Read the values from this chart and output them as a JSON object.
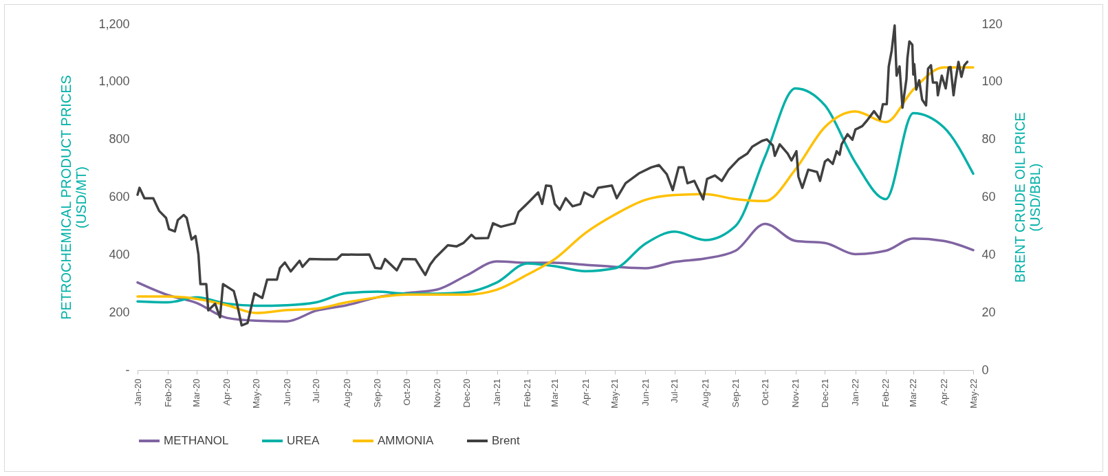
{
  "chart_data": {
    "type": "line",
    "ylabel": "PETROCHEMICAL PRODUCT PRICES\n(USD/MT)",
    "y2label": "BRENT CRUDE OIL PRICE\n(USD/BBL)",
    "legend": "bottom",
    "x": [
      "2020-01",
      "2020-02",
      "2020-03",
      "2020-04",
      "2020-05",
      "2020-06",
      "2020-07",
      "2020-08",
      "2020-09",
      "2020-10",
      "2020-11",
      "2020-12",
      "2021-01",
      "2021-02",
      "2021-03",
      "2021-04",
      "2021-05",
      "2021-06",
      "2021-07",
      "2021-08",
      "2021-09",
      "2021-10",
      "2021-11",
      "2021-12",
      "2022-01",
      "2022-02",
      "2022-03",
      "2022-04",
      "2022-05"
    ],
    "xlim": [
      "2020-01-01",
      "2022-05-01"
    ],
    "xticks": [
      {
        "value": "2020-01",
        "label": "Jan-20"
      },
      {
        "value": "2020-02",
        "label": "Feb-20"
      },
      {
        "value": "2020-03",
        "label": "Mar-20"
      },
      {
        "value": "2020-04",
        "label": "Apr-20"
      },
      {
        "value": "2020-05",
        "label": "May-20"
      },
      {
        "value": "2020-06",
        "label": "Jun-20"
      },
      {
        "value": "2020-07",
        "label": "Jul-20"
      },
      {
        "value": "2020-08",
        "label": "Aug-20"
      },
      {
        "value": "2020-09",
        "label": "Sep-20"
      },
      {
        "value": "2020-10",
        "label": "Oct-20"
      },
      {
        "value": "2020-11",
        "label": "Nov-20"
      },
      {
        "value": "2020-12",
        "label": "Dec-20"
      },
      {
        "value": "2021-01",
        "label": "Jan-21"
      },
      {
        "value": "2021-02",
        "label": "Feb-21"
      },
      {
        "value": "2021-03",
        "label": "Mar-21"
      },
      {
        "value": "2021-04",
        "label": "Apr-21"
      },
      {
        "value": "2021-05",
        "label": "May-21"
      },
      {
        "value": "2021-06",
        "label": "Jun-21"
      },
      {
        "value": "2021-07",
        "label": "Jul-21"
      },
      {
        "value": "2021-08",
        "label": "Aug-21"
      },
      {
        "value": "2021-09",
        "label": "Sep-21"
      },
      {
        "value": "2021-10",
        "label": "Oct-21"
      },
      {
        "value": "2021-11",
        "label": "Nov-21"
      },
      {
        "value": "2021-12",
        "label": "Dec-21"
      },
      {
        "value": "2022-01",
        "label": "Jan-22"
      },
      {
        "value": "2022-02",
        "label": "Feb-22"
      },
      {
        "value": "2022-03",
        "label": "Mar-22"
      },
      {
        "value": "2022-04",
        "label": "Apr-22"
      },
      {
        "value": "2022-05",
        "label": "May-22"
      }
    ],
    "ylim": [
      0,
      1200
    ],
    "yticks": [
      {
        "value": 0,
        "label": "-"
      },
      200,
      400,
      600,
      800,
      {
        "value": 1000,
        "label": "1,000"
      },
      {
        "value": 1200,
        "label": "1,200"
      }
    ],
    "y2lim": [
      0,
      120
    ],
    "y2ticks": [
      0,
      20,
      40,
      60,
      80,
      100,
      120
    ],
    "series": [
      {
        "name": "METHANOL",
        "color": "#8064a2",
        "values": [
          304,
          260,
          233,
          181,
          171,
          169,
          206,
          225,
          252,
          267,
          279,
          328,
          377,
          372,
          372,
          365,
          358,
          353,
          375,
          387,
          414,
          507,
          448,
          441,
          402,
          414,
          456,
          448,
          416
        ]
      },
      {
        "name": "UREA",
        "color": "#00b0a8",
        "values": [
          238,
          235,
          252,
          230,
          223,
          225,
          235,
          267,
          272,
          265,
          265,
          270,
          304,
          370,
          360,
          343,
          353,
          438,
          480,
          451,
          500,
          740,
          977,
          918,
          720,
          593,
          891,
          842,
          681
        ]
      },
      {
        "name": "AMMONIA",
        "color": "#ffc000",
        "values": [
          255,
          255,
          247,
          225,
          198,
          208,
          213,
          235,
          252,
          262,
          262,
          262,
          279,
          331,
          385,
          475,
          539,
          590,
          607,
          610,
          593,
          586,
          696,
          843,
          897,
          860,
          973,
          1050,
          1050
        ]
      },
      {
        "name": "Brent",
        "color": "#404040",
        "axis": "y2",
        "x": [
          "2020-01-01",
          "2020-01-03",
          "2020-01-08",
          "2020-01-17",
          "2020-01-23",
          "2020-01-30",
          "2020-02-02",
          "2020-02-08",
          "2020-02-11",
          "2020-02-17",
          "2020-02-20",
          "2020-02-25",
          "2020-02-29",
          "2020-03-03",
          "2020-03-05",
          "2020-03-11",
          "2020-03-13",
          "2020-03-20",
          "2020-03-25",
          "2020-03-28",
          "2020-04-08",
          "2020-04-11",
          "2020-04-16",
          "2020-04-22",
          "2020-04-29",
          "2020-05-07",
          "2020-05-12",
          "2020-05-22",
          "2020-05-25",
          "2020-05-30",
          "2020-06-05",
          "2020-06-14",
          "2020-06-17",
          "2020-06-24",
          "2020-07-08",
          "2020-07-22",
          "2020-07-27",
          "2020-08-12",
          "2020-08-24",
          "2020-08-30",
          "2020-09-05",
          "2020-09-09",
          "2020-09-21",
          "2020-09-27",
          "2020-10-10",
          "2020-10-17",
          "2020-10-20",
          "2020-10-25",
          "2020-10-30",
          "2020-11-12",
          "2020-11-21",
          "2020-11-28",
          "2020-12-06",
          "2020-12-10",
          "2020-12-23",
          "2020-12-28",
          "2021-01-05",
          "2021-01-19",
          "2021-01-23",
          "2021-02-04",
          "2021-02-12",
          "2021-02-16",
          "2021-02-20",
          "2021-02-25",
          "2021-03-01",
          "2021-03-06",
          "2021-03-12",
          "2021-03-19",
          "2021-03-27",
          "2021-03-31",
          "2021-04-09",
          "2021-04-14",
          "2021-04-28",
          "2021-05-03",
          "2021-05-12",
          "2021-05-26",
          "2021-06-07",
          "2021-06-15",
          "2021-06-23",
          "2021-06-29",
          "2021-07-05",
          "2021-07-10",
          "2021-07-14",
          "2021-07-21",
          "2021-07-30",
          "2021-08-03",
          "2021-08-11",
          "2021-08-18",
          "2021-08-25",
          "2021-09-04",
          "2021-09-13",
          "2021-09-18",
          "2021-09-28",
          "2021-10-03",
          "2021-10-09",
          "2021-10-11",
          "2021-10-16",
          "2021-10-24",
          "2021-10-28",
          "2021-11-02",
          "2021-11-04",
          "2021-11-08",
          "2021-11-14",
          "2021-11-23",
          "2021-11-26",
          "2021-12-01",
          "2021-12-04",
          "2021-12-09",
          "2021-12-13",
          "2021-12-16",
          "2021-12-18",
          "2021-12-24",
          "2021-12-29",
          "2022-01-01",
          "2022-01-08",
          "2022-01-13",
          "2022-01-20",
          "2022-01-26",
          "2022-01-29",
          "2022-02-02",
          "2022-02-04",
          "2022-02-07",
          "2022-02-10",
          "2022-02-12",
          "2022-02-15",
          "2022-02-18",
          "2022-02-22",
          "2022-02-23",
          "2022-02-25",
          "2022-02-28",
          "2022-03-01",
          "2022-03-02",
          "2022-03-04",
          "2022-03-07",
          "2022-03-10",
          "2022-03-14",
          "2022-03-16",
          "2022-03-19",
          "2022-03-21",
          "2022-03-25",
          "2022-03-26",
          "2022-03-30",
          "2022-04-03",
          "2022-04-06",
          "2022-04-08",
          "2022-04-11",
          "2022-04-13",
          "2022-04-16",
          "2022-04-19",
          "2022-04-22",
          "2022-04-25"
        ],
        "values": [
          60.8,
          63.2,
          59.6,
          59.6,
          55.2,
          52.8,
          48.9,
          48.1,
          52.0,
          53.8,
          52.8,
          45.3,
          46.5,
          40.1,
          29.8,
          29.8,
          20.7,
          23.0,
          18.3,
          29.8,
          27.4,
          23.5,
          15.5,
          16.3,
          26.6,
          25.0,
          31.4,
          31.4,
          35.4,
          37.3,
          34.2,
          37.9,
          35.8,
          38.5,
          38.4,
          38.4,
          40.1,
          40.0,
          40.1,
          35.4,
          35.2,
          38.5,
          34.6,
          38.5,
          38.4,
          34.6,
          33.0,
          36.6,
          38.9,
          43.3,
          42.9,
          44.1,
          46.9,
          45.7,
          45.8,
          50.9,
          49.7,
          50.9,
          54.8,
          58.8,
          61.6,
          57.6,
          64.0,
          63.8,
          57.6,
          55.6,
          59.6,
          56.8,
          57.6,
          61.6,
          60.0,
          63.2,
          64.0,
          59.6,
          64.8,
          68.3,
          70.3,
          71.1,
          67.9,
          62.4,
          70.3,
          70.3,
          64.8,
          65.6,
          59.2,
          66.3,
          67.5,
          65.6,
          69.5,
          73.1,
          75.1,
          77.5,
          79.5,
          80.0,
          77.9,
          74.3,
          78.3,
          75.1,
          72.7,
          75.9,
          67.1,
          63.2,
          69.5,
          68.7,
          65.6,
          72.3,
          73.1,
          71.5,
          75.9,
          74.7,
          78.3,
          81.8,
          79.9,
          83.4,
          84.6,
          86.6,
          89.8,
          87.0,
          92.2,
          92.2,
          105.3,
          110.8,
          119.5,
          102.1,
          105.3,
          91.0,
          100.9,
          108.1,
          114.0,
          112.8,
          102.5,
          106.1,
          97.3,
          100.5,
          93.8,
          91.8,
          104.5,
          105.7,
          99.7,
          99.7,
          95.3,
          102.1,
          97.7,
          104.9,
          105.1,
          95.3,
          100.5,
          106.9,
          101.7,
          105.7,
          106.9
        ]
      }
    ]
  }
}
